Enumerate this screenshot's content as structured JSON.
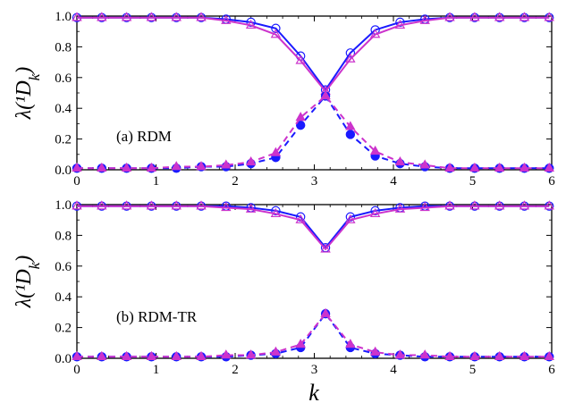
{
  "chart_data": [
    {
      "type": "line",
      "label": "(a) RDM",
      "ylabel": "λ(¹D_k)",
      "xlabel": "",
      "xlim": [
        0,
        6
      ],
      "ylim": [
        0,
        1
      ],
      "xticks": [
        "0",
        "1",
        "2",
        "3",
        "4",
        "5",
        "6"
      ],
      "yticks": [
        "0.0",
        "0.2",
        "0.4",
        "0.6",
        "0.8",
        "1.0"
      ],
      "x": [
        0.0,
        0.314,
        0.628,
        0.942,
        1.257,
        1.571,
        1.885,
        2.199,
        2.513,
        2.827,
        3.142,
        3.456,
        3.77,
        4.084,
        4.398,
        4.712,
        5.027,
        5.341,
        5.655,
        5.969
      ],
      "series": [
        {
          "color": "#1a1aff",
          "style": "solid",
          "marker": "open-circle",
          "values": [
            0.99,
            0.99,
            0.99,
            0.99,
            0.99,
            0.99,
            0.98,
            0.96,
            0.92,
            0.74,
            0.52,
            0.76,
            0.91,
            0.96,
            0.98,
            0.99,
            0.99,
            0.99,
            0.99,
            0.99
          ]
        },
        {
          "color": "#cc33cc",
          "style": "solid",
          "marker": "open-triangle",
          "values": [
            0.99,
            0.99,
            0.99,
            0.99,
            0.99,
            0.99,
            0.97,
            0.94,
            0.88,
            0.71,
            0.51,
            0.72,
            0.88,
            0.94,
            0.97,
            0.99,
            0.99,
            0.99,
            0.99,
            0.99
          ]
        },
        {
          "color": "#1a1aff",
          "style": "dashed",
          "marker": "filled-circle",
          "values": [
            0.01,
            0.01,
            0.01,
            0.01,
            0.01,
            0.02,
            0.02,
            0.04,
            0.08,
            0.29,
            0.48,
            0.23,
            0.09,
            0.04,
            0.02,
            0.01,
            0.01,
            0.01,
            0.01,
            0.01
          ]
        },
        {
          "color": "#cc33cc",
          "style": "dashed",
          "marker": "filled-triangle",
          "values": [
            0.01,
            0.01,
            0.01,
            0.01,
            0.02,
            0.02,
            0.03,
            0.05,
            0.11,
            0.34,
            0.48,
            0.28,
            0.12,
            0.05,
            0.03,
            0.01,
            0.01,
            0.01,
            0.01,
            0.01
          ]
        }
      ]
    },
    {
      "type": "line",
      "label": "(b) RDM-TR",
      "ylabel": "λ(¹D_k)",
      "xlabel": "k",
      "xlim": [
        0,
        6
      ],
      "ylim": [
        0,
        1
      ],
      "xticks": [
        "0",
        "1",
        "2",
        "3",
        "4",
        "5",
        "6"
      ],
      "yticks": [
        "0.0",
        "0.2",
        "0.4",
        "0.6",
        "0.8",
        "1.0"
      ],
      "x": [
        0.0,
        0.314,
        0.628,
        0.942,
        1.257,
        1.571,
        1.885,
        2.199,
        2.513,
        2.827,
        3.142,
        3.456,
        3.77,
        4.084,
        4.398,
        4.712,
        5.027,
        5.341,
        5.655,
        5.969
      ],
      "series": [
        {
          "color": "#1a1aff",
          "style": "solid",
          "marker": "open-circle",
          "values": [
            0.99,
            0.99,
            0.99,
            0.99,
            0.99,
            0.99,
            0.99,
            0.98,
            0.96,
            0.92,
            0.72,
            0.92,
            0.96,
            0.98,
            0.99,
            0.99,
            0.99,
            0.99,
            0.99,
            0.99
          ]
        },
        {
          "color": "#cc33cc",
          "style": "solid",
          "marker": "open-triangle",
          "values": [
            0.99,
            0.99,
            0.99,
            0.99,
            0.99,
            0.99,
            0.98,
            0.97,
            0.94,
            0.9,
            0.71,
            0.9,
            0.94,
            0.97,
            0.98,
            0.99,
            0.99,
            0.99,
            0.99,
            0.99
          ]
        },
        {
          "color": "#1a1aff",
          "style": "dashed",
          "marker": "filled-circle",
          "values": [
            0.01,
            0.01,
            0.01,
            0.01,
            0.01,
            0.01,
            0.01,
            0.02,
            0.03,
            0.07,
            0.29,
            0.07,
            0.03,
            0.02,
            0.01,
            0.01,
            0.01,
            0.01,
            0.01,
            0.01
          ]
        },
        {
          "color": "#cc33cc",
          "style": "dashed",
          "marker": "filled-triangle",
          "values": [
            0.01,
            0.01,
            0.01,
            0.01,
            0.01,
            0.01,
            0.02,
            0.02,
            0.04,
            0.09,
            0.29,
            0.09,
            0.04,
            0.02,
            0.02,
            0.01,
            0.01,
            0.01,
            0.01,
            0.01
          ]
        }
      ]
    }
  ]
}
